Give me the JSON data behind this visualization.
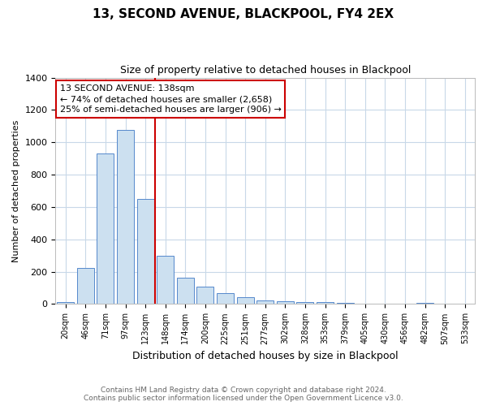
{
  "title": "13, SECOND AVENUE, BLACKPOOL, FY4 2EX",
  "subtitle": "Size of property relative to detached houses in Blackpool",
  "xlabel": "Distribution of detached houses by size in Blackpool",
  "ylabel": "Number of detached properties",
  "categories": [
    "20sqm",
    "46sqm",
    "71sqm",
    "97sqm",
    "123sqm",
    "148sqm",
    "174sqm",
    "200sqm",
    "225sqm",
    "251sqm",
    "277sqm",
    "302sqm",
    "328sqm",
    "353sqm",
    "379sqm",
    "405sqm",
    "430sqm",
    "456sqm",
    "482sqm",
    "507sqm",
    "533sqm"
  ],
  "values": [
    10,
    225,
    930,
    1075,
    650,
    300,
    165,
    110,
    65,
    40,
    22,
    15,
    13,
    10,
    8,
    0,
    0,
    0,
    5,
    0,
    0
  ],
  "bar_color": "#cce0f0",
  "bar_edge_color": "#5588cc",
  "red_line_color": "#cc0000",
  "ylim": [
    0,
    1400
  ],
  "annotation_line1": "13 SECOND AVENUE: 138sqm",
  "annotation_line2": "← 74% of detached houses are smaller (2,658)",
  "annotation_line3": "25% of semi-detached houses are larger (906) →",
  "annotation_box_facecolor": "#ffffff",
  "annotation_box_edgecolor": "#cc0000",
  "footer1": "Contains HM Land Registry data © Crown copyright and database right 2024.",
  "footer2": "Contains public sector information licensed under the Open Government Licence v3.0.",
  "bg_color": "#ffffff",
  "grid_color": "#c8d8e8",
  "title_fontsize": 11,
  "subtitle_fontsize": 9,
  "ylabel_fontsize": 8,
  "xlabel_fontsize": 9,
  "tick_fontsize": 7,
  "footer_fontsize": 6.5,
  "annotation_fontsize": 8
}
